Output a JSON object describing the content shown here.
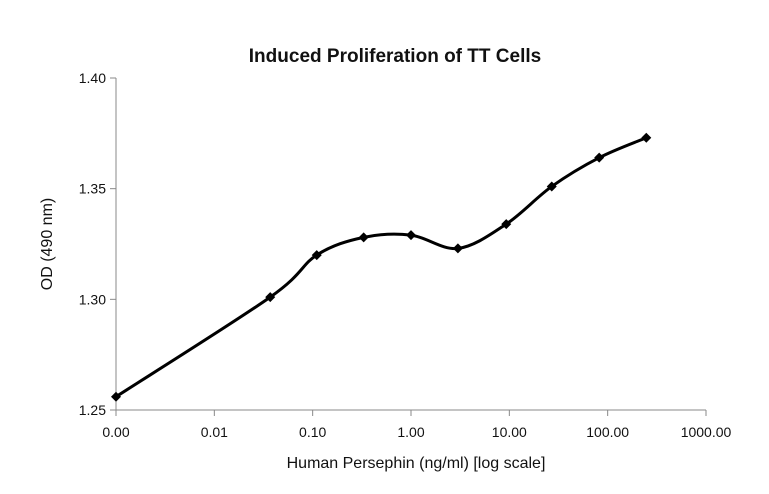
{
  "chart_data": {
    "type": "line",
    "title": "Induced Proliferation of TT Cells",
    "xlabel": "Human Persephin (ng/ml) [log scale]",
    "ylabel": "OD (490 nm)",
    "x_scale": "log",
    "x_ticks": [
      "0.00",
      "0.01",
      "0.10",
      "1.00",
      "10.00",
      "100.00",
      "1000.00"
    ],
    "y_ticks": [
      "1.25",
      "1.30",
      "1.35",
      "1.40"
    ],
    "ylim": [
      1.25,
      1.4
    ],
    "grid": false,
    "legend": "none",
    "smooth": true,
    "marker": "diamond",
    "line_color": "#000000",
    "series": [
      {
        "x": [
          0.001,
          0.037,
          0.11,
          0.33,
          1.0,
          3.0,
          9.3,
          27.0,
          82.0,
          247.0
        ],
        "values": [
          1.256,
          1.301,
          1.32,
          1.328,
          1.329,
          1.323,
          1.334,
          1.351,
          1.364,
          1.373
        ]
      }
    ]
  }
}
